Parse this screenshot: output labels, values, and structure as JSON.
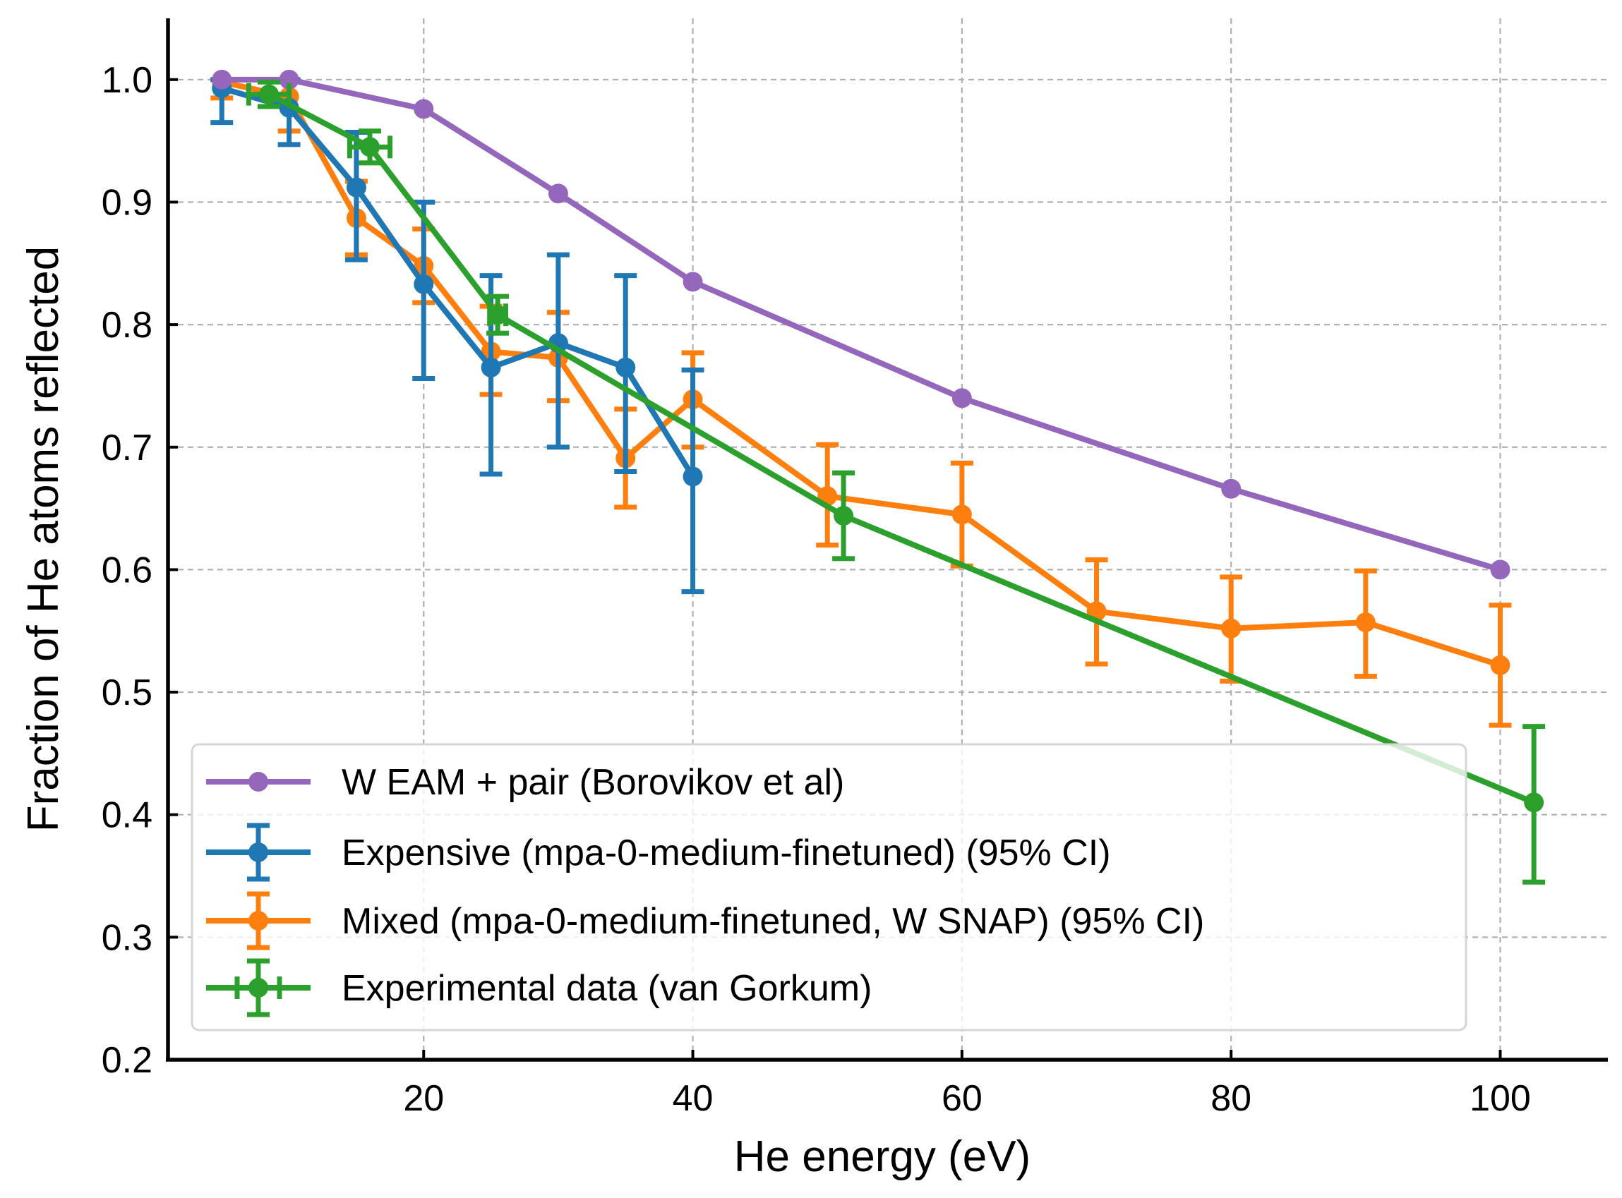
{
  "chart_data": {
    "type": "line",
    "title": "",
    "xlabel": "He energy (eV)",
    "ylabel": "Fraction of He atoms reflected",
    "xlim": [
      1,
      108
    ],
    "ylim": [
      0.2,
      1.05
    ],
    "xticks": [
      20,
      40,
      60,
      80,
      100
    ],
    "yticks": [
      0.2,
      0.3,
      0.4,
      0.5,
      0.6,
      0.7,
      0.8,
      0.9,
      1.0
    ],
    "xtick_labels": [
      "20",
      "40",
      "60",
      "80",
      "100"
    ],
    "ytick_labels": [
      "0.2",
      "0.3",
      "0.4",
      "0.5",
      "0.6",
      "0.7",
      "0.8",
      "0.9",
      "1.0"
    ],
    "grid": true,
    "legend_position": "lower-left",
    "series": [
      {
        "name": "W EAM + pair (Borovikov et al)",
        "color": "#9467bd",
        "x": [
          5,
          10,
          20,
          30,
          40,
          60,
          80,
          100
        ],
        "y": [
          1.0,
          1.0,
          0.976,
          0.907,
          0.835,
          0.74,
          0.666,
          0.6
        ]
      },
      {
        "name": "Expensive (mpa-0-medium-finetuned) (95% CI)",
        "color": "#1f77b4",
        "x": [
          5,
          10,
          15,
          20,
          25,
          30,
          35,
          40
        ],
        "y": [
          0.993,
          0.977,
          0.912,
          0.833,
          0.765,
          0.785,
          0.765,
          0.676
        ],
        "yerr_low": [
          0.965,
          0.947,
          0.853,
          0.756,
          0.678,
          0.7,
          0.68,
          0.582
        ],
        "yerr_high": [
          1.0,
          1.0,
          0.957,
          0.9,
          0.84,
          0.857,
          0.84,
          0.763
        ]
      },
      {
        "name": "Mixed (mpa-0-medium-finetuned, W SNAP) (95% CI)",
        "color": "#ff7f0e",
        "x": [
          5,
          10,
          15,
          20,
          25,
          30,
          35,
          40,
          50,
          60,
          70,
          80,
          90,
          100
        ],
        "y": [
          0.998,
          0.986,
          0.887,
          0.848,
          0.778,
          0.773,
          0.691,
          0.739,
          0.66,
          0.645,
          0.566,
          0.552,
          0.557,
          0.522
        ],
        "yerr_low": [
          0.985,
          0.958,
          0.857,
          0.818,
          0.743,
          0.738,
          0.651,
          0.7,
          0.62,
          0.603,
          0.523,
          0.509,
          0.513,
          0.473
        ],
        "yerr_high": [
          1.0,
          1.0,
          0.917,
          0.878,
          0.815,
          0.81,
          0.731,
          0.777,
          0.702,
          0.687,
          0.608,
          0.594,
          0.599,
          0.571
        ]
      },
      {
        "name": "Experimental data (van Gorkum)",
        "color": "#2ca02c",
        "x": [
          8.5,
          16,
          25.5,
          51.2,
          102.5
        ],
        "y": [
          0.988,
          0.945,
          0.808,
          0.644,
          0.41
        ],
        "yerr_low": [
          0.978,
          0.932,
          0.793,
          0.609,
          0.345
        ],
        "yerr_high": [
          0.998,
          0.958,
          0.823,
          0.679,
          0.472
        ],
        "xerr": [
          1.5,
          1.5,
          0.6,
          0,
          0
        ]
      }
    ]
  }
}
